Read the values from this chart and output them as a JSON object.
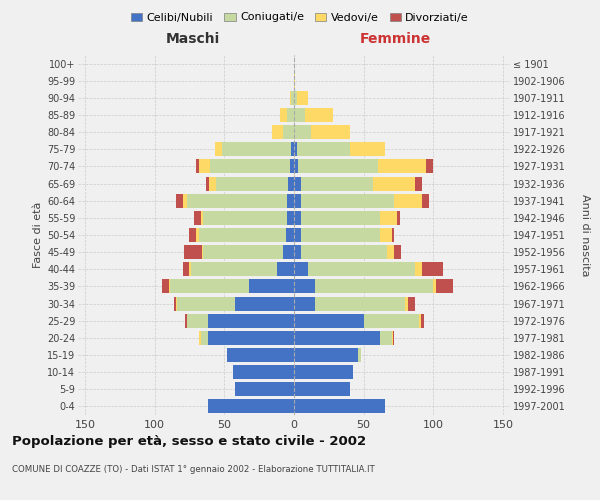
{
  "age_groups": [
    "0-4",
    "5-9",
    "10-14",
    "15-19",
    "20-24",
    "25-29",
    "30-34",
    "35-39",
    "40-44",
    "45-49",
    "50-54",
    "55-59",
    "60-64",
    "65-69",
    "70-74",
    "75-79",
    "80-84",
    "85-89",
    "90-94",
    "95-99",
    "100+"
  ],
  "birth_years": [
    "1997-2001",
    "1992-1996",
    "1987-1991",
    "1982-1986",
    "1977-1981",
    "1972-1976",
    "1967-1971",
    "1962-1966",
    "1957-1961",
    "1952-1956",
    "1947-1951",
    "1942-1946",
    "1937-1941",
    "1932-1936",
    "1927-1931",
    "1922-1926",
    "1917-1921",
    "1912-1916",
    "1907-1911",
    "1902-1906",
    "≤ 1901"
  ],
  "male": {
    "celibi": [
      62,
      42,
      44,
      48,
      62,
      62,
      42,
      32,
      12,
      8,
      6,
      5,
      5,
      4,
      3,
      2,
      0,
      0,
      0,
      0,
      0
    ],
    "coniugati": [
      0,
      0,
      0,
      0,
      5,
      15,
      42,
      57,
      62,
      57,
      62,
      60,
      72,
      52,
      57,
      50,
      8,
      5,
      2,
      0,
      0
    ],
    "vedovi": [
      0,
      0,
      0,
      0,
      1,
      0,
      1,
      1,
      1,
      1,
      2,
      2,
      3,
      5,
      8,
      5,
      8,
      5,
      1,
      0,
      0
    ],
    "divorziati": [
      0,
      0,
      0,
      0,
      0,
      1,
      1,
      5,
      5,
      13,
      5,
      5,
      5,
      2,
      2,
      0,
      0,
      0,
      0,
      0,
      0
    ]
  },
  "female": {
    "nubili": [
      65,
      40,
      42,
      46,
      62,
      50,
      15,
      15,
      10,
      5,
      5,
      5,
      5,
      5,
      3,
      2,
      0,
      0,
      0,
      0,
      0
    ],
    "coniugate": [
      0,
      0,
      0,
      2,
      8,
      40,
      65,
      85,
      77,
      62,
      57,
      57,
      67,
      52,
      57,
      38,
      12,
      8,
      2,
      0,
      0
    ],
    "vedove": [
      0,
      0,
      0,
      0,
      1,
      1,
      2,
      2,
      5,
      5,
      8,
      12,
      20,
      30,
      35,
      25,
      28,
      20,
      8,
      1,
      0
    ],
    "divorziate": [
      0,
      0,
      0,
      0,
      1,
      2,
      5,
      12,
      15,
      5,
      2,
      2,
      5,
      5,
      5,
      0,
      0,
      0,
      0,
      0,
      0
    ]
  },
  "colors": {
    "celibi": "#4472c4",
    "coniugati": "#c5d9a0",
    "vedovi": "#ffd966",
    "divorziati": "#c0504d"
  },
  "title": "Popolazione per età, sesso e stato civile - 2002",
  "subtitle": "COMUNE DI COAZZE (TO) - Dati ISTAT 1° gennaio 2002 - Elaborazione TUTTITALIA.IT",
  "xlabel_left": "Maschi",
  "xlabel_right": "Femmine",
  "ylabel_left": "Fasce di età",
  "ylabel_right": "Anni di nascita",
  "xlim": 155,
  "background_color": "#f0f0f0",
  "legend_labels": [
    "Celibi/Nubili",
    "Coniugati/e",
    "Vedovi/e",
    "Divorziati/e"
  ]
}
